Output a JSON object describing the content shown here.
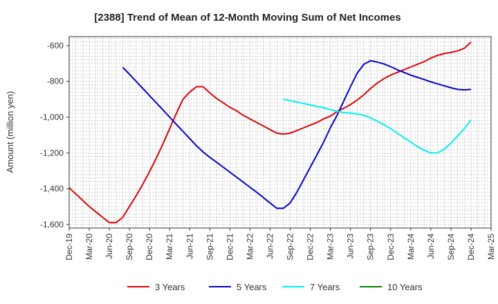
{
  "chart_data": {
    "type": "line",
    "title": "[2388]  Trend of Mean of 12-Month Moving Sum of Net Incomes",
    "xlabel": "",
    "ylabel": "Amount (million yen)",
    "ylim": [
      -1620,
      -550
    ],
    "yticks": [
      -600,
      -800,
      -1000,
      -1200,
      -1400,
      -1600
    ],
    "ytick_labels": [
      "-600",
      "-800",
      "-1,000",
      "-1,200",
      "-1,400",
      "-1,600"
    ],
    "xtick_labels": [
      "Dec-19",
      "Mar-20",
      "Jun-20",
      "Sep-20",
      "Dec-20",
      "Mar-21",
      "Jun-21",
      "Sep-21",
      "Dec-21",
      "Mar-22",
      "Jun-22",
      "Sep-22",
      "Dec-22",
      "Mar-23",
      "Jun-23",
      "Sep-23",
      "Dec-23",
      "Mar-24",
      "Jun-24",
      "Sep-24",
      "Dec-24",
      "Mar-25"
    ],
    "grid": true,
    "legend_position": "bottom",
    "series": [
      {
        "name": "3 Years",
        "color": "#dd0000",
        "values": [
          [
            "Dec-19",
            -1395
          ],
          [
            "Jan-20",
            -1430
          ],
          [
            "Feb-20",
            -1465
          ],
          [
            "Mar-20",
            -1500
          ],
          [
            "Apr-20",
            -1530
          ],
          [
            "May-20",
            -1560
          ],
          [
            "Jun-20",
            -1590
          ],
          [
            "Jul-20",
            -1590
          ],
          [
            "Aug-20",
            -1560
          ],
          [
            "Sep-20",
            -1500
          ],
          [
            "Oct-20",
            -1440
          ],
          [
            "Nov-20",
            -1375
          ],
          [
            "Dec-20",
            -1305
          ],
          [
            "Jan-21",
            -1230
          ],
          [
            "Feb-21",
            -1150
          ],
          [
            "Mar-21",
            -1065
          ],
          [
            "Apr-21",
            -980
          ],
          [
            "May-21",
            -900
          ],
          [
            "Jun-21",
            -860
          ],
          [
            "Jul-21",
            -830
          ],
          [
            "Aug-21",
            -830
          ],
          [
            "Sep-21",
            -865
          ],
          [
            "Oct-21",
            -895
          ],
          [
            "Nov-21",
            -920
          ],
          [
            "Dec-21",
            -945
          ],
          [
            "Jan-22",
            -965
          ],
          [
            "Feb-22",
            -990
          ],
          [
            "Mar-22",
            -1010
          ],
          [
            "Apr-22",
            -1030
          ],
          [
            "May-22",
            -1050
          ],
          [
            "Jun-22",
            -1070
          ],
          [
            "Jul-22",
            -1090
          ],
          [
            "Aug-22",
            -1095
          ],
          [
            "Sep-22",
            -1090
          ],
          [
            "Oct-22",
            -1075
          ],
          [
            "Nov-22",
            -1060
          ],
          [
            "Dec-22",
            -1045
          ],
          [
            "Jan-23",
            -1030
          ],
          [
            "Feb-23",
            -1010
          ],
          [
            "Mar-23",
            -995
          ],
          [
            "Apr-23",
            -970
          ],
          [
            "May-23",
            -950
          ],
          [
            "Jun-23",
            -930
          ],
          [
            "Jul-23",
            -905
          ],
          [
            "Aug-23",
            -875
          ],
          [
            "Sep-23",
            -840
          ],
          [
            "Oct-23",
            -810
          ],
          [
            "Nov-23",
            -785
          ],
          [
            "Dec-23",
            -765
          ],
          [
            "Jan-24",
            -750
          ],
          [
            "Feb-24",
            -735
          ],
          [
            "Mar-24",
            -720
          ],
          [
            "Apr-24",
            -705
          ],
          [
            "May-24",
            -690
          ],
          [
            "Jun-24",
            -670
          ],
          [
            "Jul-24",
            -655
          ],
          [
            "Aug-24",
            -645
          ],
          [
            "Sep-24",
            -638
          ],
          [
            "Oct-24",
            -630
          ],
          [
            "Nov-24",
            -615
          ],
          [
            "Dec-24",
            -580
          ]
        ]
      },
      {
        "name": "5 Years",
        "color": "#0000cc",
        "values": [
          [
            "Aug-20",
            -722
          ],
          [
            "Sep-20",
            -760
          ],
          [
            "Oct-20",
            -800
          ],
          [
            "Nov-20",
            -840
          ],
          [
            "Dec-20",
            -880
          ],
          [
            "Jan-21",
            -920
          ],
          [
            "Feb-21",
            -960
          ],
          [
            "Mar-21",
            -1000
          ],
          [
            "Apr-21",
            -1040
          ],
          [
            "May-21",
            -1080
          ],
          [
            "Jun-21",
            -1120
          ],
          [
            "Jul-21",
            -1160
          ],
          [
            "Aug-21",
            -1195
          ],
          [
            "Sep-21",
            -1225
          ],
          [
            "Oct-21",
            -1252
          ],
          [
            "Nov-21",
            -1280
          ],
          [
            "Dec-21",
            -1308
          ],
          [
            "Jan-22",
            -1336
          ],
          [
            "Feb-22",
            -1364
          ],
          [
            "Mar-22",
            -1392
          ],
          [
            "Apr-22",
            -1420
          ],
          [
            "May-22",
            -1450
          ],
          [
            "Jun-22",
            -1480
          ],
          [
            "Jul-22",
            -1510
          ],
          [
            "Aug-22",
            -1510
          ],
          [
            "Sep-22",
            -1480
          ],
          [
            "Oct-22",
            -1420
          ],
          [
            "Nov-22",
            -1350
          ],
          [
            "Dec-22",
            -1280
          ],
          [
            "Jan-23",
            -1210
          ],
          [
            "Feb-23",
            -1140
          ],
          [
            "Mar-23",
            -1060
          ],
          [
            "Apr-23",
            -990
          ],
          [
            "May-23",
            -910
          ],
          [
            "Jun-23",
            -830
          ],
          [
            "Jul-23",
            -755
          ],
          [
            "Aug-23",
            -705
          ],
          [
            "Sep-23",
            -685
          ],
          [
            "Oct-23",
            -692
          ],
          [
            "Nov-23",
            -703
          ],
          [
            "Dec-23",
            -718
          ],
          [
            "Jan-24",
            -735
          ],
          [
            "Feb-24",
            -750
          ],
          [
            "Mar-24",
            -765
          ],
          [
            "Apr-24",
            -778
          ],
          [
            "May-24",
            -790
          ],
          [
            "Jun-24",
            -803
          ],
          [
            "Jul-24",
            -814
          ],
          [
            "Aug-24",
            -825
          ],
          [
            "Sep-24",
            -836
          ],
          [
            "Oct-24",
            -845
          ],
          [
            "Nov-24",
            -848
          ],
          [
            "Dec-24",
            -845
          ]
        ]
      },
      {
        "name": "7 Years",
        "color": "#00eeee",
        "values": [
          [
            "Aug-22",
            -900
          ],
          [
            "Sep-22",
            -908
          ],
          [
            "Oct-22",
            -916
          ],
          [
            "Nov-22",
            -924
          ],
          [
            "Dec-22",
            -932
          ],
          [
            "Jan-23",
            -940
          ],
          [
            "Feb-23",
            -948
          ],
          [
            "Mar-23",
            -958
          ],
          [
            "Apr-23",
            -968
          ],
          [
            "May-23",
            -975
          ],
          [
            "Jun-23",
            -978
          ],
          [
            "Jul-23",
            -982
          ],
          [
            "Aug-23",
            -990
          ],
          [
            "Sep-23",
            -1005
          ],
          [
            "Oct-23",
            -1022
          ],
          [
            "Nov-23",
            -1042
          ],
          [
            "Dec-23",
            -1065
          ],
          [
            "Jan-24",
            -1090
          ],
          [
            "Feb-24",
            -1115
          ],
          [
            "Mar-24",
            -1140
          ],
          [
            "Apr-24",
            -1165
          ],
          [
            "May-24",
            -1185
          ],
          [
            "Jun-24",
            -1200
          ],
          [
            "Jul-24",
            -1200
          ],
          [
            "Aug-24",
            -1180
          ],
          [
            "Sep-24",
            -1145
          ],
          [
            "Oct-24",
            -1105
          ],
          [
            "Nov-24",
            -1065
          ],
          [
            "Dec-24",
            -1015
          ]
        ]
      },
      {
        "name": "10 Years",
        "color": "#008000",
        "values": []
      }
    ]
  }
}
